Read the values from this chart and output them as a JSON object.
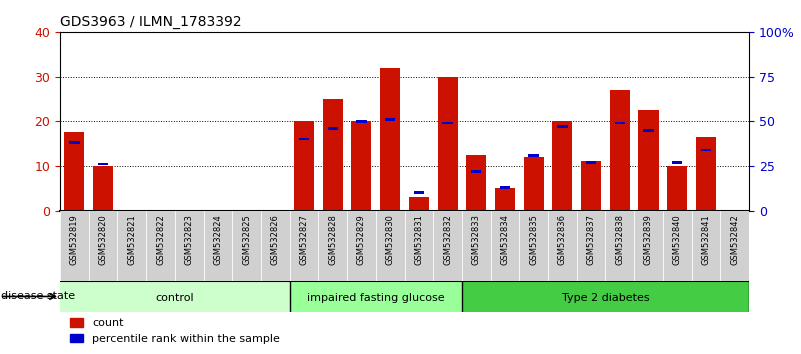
{
  "title": "GDS3963 / ILMN_1783392",
  "samples": [
    "GSM532819",
    "GSM532820",
    "GSM532821",
    "GSM532822",
    "GSM532823",
    "GSM532824",
    "GSM532825",
    "GSM532826",
    "GSM532827",
    "GSM532828",
    "GSM532829",
    "GSM532830",
    "GSM532831",
    "GSM532832",
    "GSM532833",
    "GSM532834",
    "GSM532835",
    "GSM532836",
    "GSM532837",
    "GSM532838",
    "GSM532839",
    "GSM532840",
    "GSM532841",
    "GSM532842"
  ],
  "counts": [
    17.5,
    10,
    0,
    0,
    0,
    0,
    0,
    0,
    20,
    25,
    20,
    32,
    3,
    30,
    12.5,
    5,
    12,
    20,
    11,
    27,
    22.5,
    10,
    16.5,
    0
  ],
  "percentile_ranks": [
    38,
    26,
    0,
    0,
    0,
    0,
    0,
    0,
    40,
    46,
    50,
    51,
    10,
    49,
    22,
    13,
    31,
    47,
    27,
    49,
    45,
    27,
    34,
    0
  ],
  "groups": [
    {
      "label": "control",
      "start": 0,
      "end": 8,
      "color": "#ccffcc"
    },
    {
      "label": "impaired fasting glucose",
      "start": 8,
      "end": 14,
      "color": "#99ff99"
    },
    {
      "label": "Type 2 diabetes",
      "start": 14,
      "end": 24,
      "color": "#44cc44"
    }
  ],
  "bar_color": "#cc1100",
  "marker_color": "#0000cc",
  "ylim_left": [
    0,
    40
  ],
  "ylim_right": [
    0,
    100
  ],
  "yticks_left": [
    0,
    10,
    20,
    30,
    40
  ],
  "yticks_right": [
    0,
    25,
    50,
    75,
    100
  ],
  "ytick_labels_right": [
    "0",
    "25",
    "50",
    "75",
    "100%"
  ],
  "cell_bg": "#d0d0d0",
  "plot_bg_color": "#ffffff"
}
